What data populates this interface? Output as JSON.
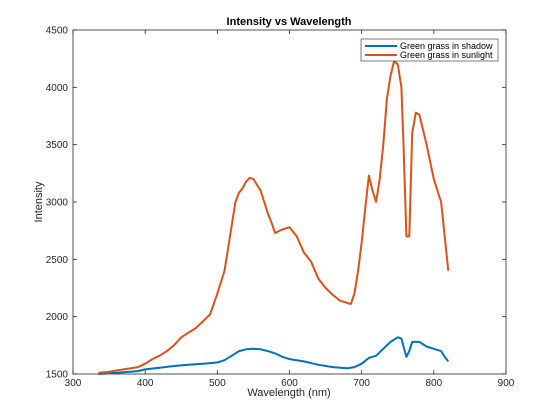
{
  "chart_data": {
    "type": "line",
    "title": "Intensity vs Wavelength",
    "xlabel": "Wavelength (nm)",
    "ylabel": "Intensity",
    "xlim": [
      300,
      900
    ],
    "ylim": [
      1500,
      4500
    ],
    "xticks": [
      300,
      400,
      500,
      600,
      700,
      800,
      900
    ],
    "yticks": [
      1500,
      2000,
      2500,
      3000,
      3500,
      4000,
      4500
    ],
    "grid": false,
    "legend_position": "top-right",
    "series": [
      {
        "name": "Green grass in shadow",
        "color": "#0072BD",
        "x": [
          335,
          350,
          370,
          390,
          400,
          420,
          440,
          460,
          480,
          500,
          510,
          520,
          530,
          540,
          550,
          560,
          570,
          580,
          590,
          600,
          620,
          640,
          660,
          680,
          690,
          700,
          710,
          720,
          730,
          740,
          750,
          755,
          758,
          762,
          766,
          770,
          780,
          790,
          800,
          810,
          815,
          820
        ],
        "values": [
          1500,
          1505,
          1515,
          1525,
          1540,
          1555,
          1570,
          1580,
          1590,
          1600,
          1620,
          1660,
          1700,
          1715,
          1720,
          1715,
          1700,
          1680,
          1650,
          1630,
          1610,
          1580,
          1560,
          1550,
          1560,
          1590,
          1640,
          1660,
          1720,
          1780,
          1820,
          1810,
          1740,
          1650,
          1700,
          1780,
          1780,
          1740,
          1720,
          1700,
          1650,
          1610
        ]
      },
      {
        "name": "Green grass in sunlight",
        "color": "#D95319",
        "x": [
          335,
          350,
          370,
          390,
          400,
          410,
          420,
          430,
          440,
          450,
          460,
          470,
          480,
          490,
          500,
          510,
          515,
          520,
          525,
          530,
          535,
          540,
          545,
          550,
          555,
          560,
          565,
          570,
          575,
          580,
          590,
          600,
          610,
          620,
          630,
          640,
          650,
          660,
          670,
          680,
          685,
          690,
          695,
          700,
          705,
          710,
          715,
          720,
          725,
          730,
          735,
          740,
          745,
          750,
          755,
          758,
          762,
          766,
          770,
          775,
          780,
          790,
          800,
          810,
          815,
          820
        ],
        "values": [
          1510,
          1520,
          1540,
          1560,
          1590,
          1630,
          1660,
          1700,
          1750,
          1820,
          1860,
          1900,
          1960,
          2020,
          2200,
          2400,
          2600,
          2800,
          3000,
          3080,
          3120,
          3180,
          3210,
          3200,
          3150,
          3100,
          3000,
          2900,
          2820,
          2730,
          2760,
          2780,
          2700,
          2560,
          2480,
          2330,
          2250,
          2190,
          2140,
          2120,
          2110,
          2200,
          2400,
          2650,
          2950,
          3230,
          3100,
          3000,
          3200,
          3500,
          3900,
          4100,
          4230,
          4200,
          4000,
          3500,
          2700,
          2700,
          3600,
          3780,
          3760,
          3500,
          3200,
          3000,
          2700,
          2400
        ]
      }
    ]
  }
}
